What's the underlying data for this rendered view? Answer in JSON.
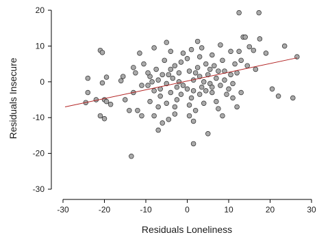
{
  "chart_data": {
    "type": "scatter",
    "xlabel": "Residuals Loneliness",
    "ylabel": "Residuals Insecure",
    "xlim": [
      -30,
      30
    ],
    "ylim": [
      -30,
      20
    ],
    "xticks": [
      -30,
      -20,
      -10,
      0,
      10,
      20,
      30
    ],
    "yticks": [
      -30,
      -20,
      -10,
      0,
      10,
      20
    ],
    "grid": false,
    "regression_line": {
      "x": [
        -29.5,
        26.5
      ],
      "y": [
        -7,
        6.7
      ],
      "color": "#b22222"
    },
    "points": [
      {
        "x": 12.5,
        "y": 19.3
      },
      {
        "x": 17.3,
        "y": 19.3
      },
      {
        "x": -21,
        "y": 8.8
      },
      {
        "x": -20.5,
        "y": 8.2
      },
      {
        "x": -24,
        "y": 1
      },
      {
        "x": -20.5,
        "y": -0.3
      },
      {
        "x": -19.5,
        "y": 1.3
      },
      {
        "x": -24,
        "y": -3
      },
      {
        "x": -22,
        "y": -5
      },
      {
        "x": -20,
        "y": -5
      },
      {
        "x": -19.5,
        "y": -5.5
      },
      {
        "x": -24.5,
        "y": -5.8
      },
      {
        "x": -18.5,
        "y": -6.3
      },
      {
        "x": -21,
        "y": -9.5
      },
      {
        "x": -20,
        "y": -10.3
      },
      {
        "x": -16,
        "y": 0.3
      },
      {
        "x": -15.5,
        "y": 1.5
      },
      {
        "x": -13,
        "y": 4
      },
      {
        "x": -11.5,
        "y": 8
      },
      {
        "x": -12.5,
        "y": 2.5
      },
      {
        "x": -10.5,
        "y": 5
      },
      {
        "x": -13,
        "y": -3
      },
      {
        "x": -14,
        "y": -8
      },
      {
        "x": -12,
        "y": -8
      },
      {
        "x": -11,
        "y": -9.5
      },
      {
        "x": -13.5,
        "y": -20.8
      },
      {
        "x": -8,
        "y": 9.5
      },
      {
        "x": -5,
        "y": 11
      },
      {
        "x": -4,
        "y": 8.5
      },
      {
        "x": -7.5,
        "y": 3.5
      },
      {
        "x": -9,
        "y": 1.5
      },
      {
        "x": -7,
        "y": 0.5
      },
      {
        "x": -9.5,
        "y": -1
      },
      {
        "x": -8,
        "y": -2.5
      },
      {
        "x": -6.5,
        "y": -4
      },
      {
        "x": -9,
        "y": -5.5
      },
      {
        "x": -7,
        "y": -7
      },
      {
        "x": -8,
        "y": -9.5
      },
      {
        "x": -6,
        "y": -11.5
      },
      {
        "x": -7,
        "y": -13.5
      },
      {
        "x": -4.5,
        "y": -10.5
      },
      {
        "x": -3,
        "y": -9
      },
      {
        "x": -5.5,
        "y": 6
      },
      {
        "x": -4,
        "y": 3.5
      },
      {
        "x": -3.5,
        "y": 1
      },
      {
        "x": -5,
        "y": -0.5
      },
      {
        "x": -4,
        "y": -3
      },
      {
        "x": -2.5,
        "y": -5
      },
      {
        "x": -3,
        "y": -7
      },
      {
        "x": -1.5,
        "y": 5.5
      },
      {
        "x": -2,
        "y": 2.5
      },
      {
        "x": -1,
        "y": -1
      },
      {
        "x": -1.5,
        "y": -3.5
      },
      {
        "x": 0,
        "y": 6.5
      },
      {
        "x": 1,
        "y": 9
      },
      {
        "x": 0.5,
        "y": 3
      },
      {
        "x": 1.5,
        "y": 0.5
      },
      {
        "x": 0,
        "y": -2
      },
      {
        "x": 1,
        "y": -4.5
      },
      {
        "x": 0.5,
        "y": -6.5
      },
      {
        "x": 2,
        "y": -8
      },
      {
        "x": 1.5,
        "y": -11
      },
      {
        "x": 2.5,
        "y": 11.3
      },
      {
        "x": 3,
        "y": 7
      },
      {
        "x": 2.5,
        "y": 4
      },
      {
        "x": 3,
        "y": 1.5
      },
      {
        "x": 3.5,
        "y": -1.5
      },
      {
        "x": 3,
        "y": -3.5
      },
      {
        "x": 4,
        "y": -6
      },
      {
        "x": 4.5,
        "y": 5
      },
      {
        "x": 5,
        "y": 2
      },
      {
        "x": 5.5,
        "y": -0.5
      },
      {
        "x": 4.5,
        "y": -2.5
      },
      {
        "x": 6,
        "y": 7.5
      },
      {
        "x": 6.5,
        "y": 4.5
      },
      {
        "x": 7,
        "y": 1
      },
      {
        "x": 6,
        "y": -3
      },
      {
        "x": 7,
        "y": -5.5
      },
      {
        "x": 5,
        "y": -14.5
      },
      {
        "x": 1.5,
        "y": -17.3
      },
      {
        "x": 8,
        "y": 10.3
      },
      {
        "x": 8.5,
        "y": 6
      },
      {
        "x": 9,
        "y": 3
      },
      {
        "x": 8,
        "y": -1
      },
      {
        "x": 9.5,
        "y": -3.5
      },
      {
        "x": 10.5,
        "y": 8.5
      },
      {
        "x": 11.5,
        "y": 5
      },
      {
        "x": 10.5,
        "y": 2
      },
      {
        "x": 11,
        "y": -0.5
      },
      {
        "x": 12.5,
        "y": 8.5
      },
      {
        "x": 13.5,
        "y": 12.5
      },
      {
        "x": 14,
        "y": 12.5
      },
      {
        "x": 15,
        "y": 9.8
      },
      {
        "x": 12,
        "y": 2.5
      },
      {
        "x": 13,
        "y": 6
      },
      {
        "x": 14.5,
        "y": 4.5
      },
      {
        "x": 16,
        "y": 8.8
      },
      {
        "x": 17.5,
        "y": 12
      },
      {
        "x": 16.5,
        "y": 3.5
      },
      {
        "x": 13,
        "y": -3
      },
      {
        "x": 11,
        "y": -4.5
      },
      {
        "x": 12,
        "y": -7
      },
      {
        "x": 19,
        "y": 8
      },
      {
        "x": 20.5,
        "y": -2
      },
      {
        "x": 22,
        "y": -4
      },
      {
        "x": 23.5,
        "y": 10
      },
      {
        "x": 26.5,
        "y": 7
      },
      {
        "x": 25.5,
        "y": -4.5
      },
      {
        "x": -15,
        "y": -5
      },
      {
        "x": -11,
        "y": -1
      },
      {
        "x": -6,
        "y": 2
      },
      {
        "x": -2,
        "y": 0
      },
      {
        "x": 2,
        "y": 2.5
      },
      {
        "x": 4,
        "y": 0
      },
      {
        "x": 6,
        "y": -1.5
      },
      {
        "x": 9,
        "y": 0.5
      },
      {
        "x": 10,
        "y": -2
      },
      {
        "x": -3,
        "y": 4.5
      },
      {
        "x": 0.5,
        "y": -9.5
      },
      {
        "x": -9.5,
        "y": 2.5
      },
      {
        "x": -6.5,
        "y": -2
      },
      {
        "x": -5,
        "y": -6
      },
      {
        "x": -1,
        "y": 8
      },
      {
        "x": 3.5,
        "y": 9.5
      },
      {
        "x": 7.5,
        "y": -7.5
      },
      {
        "x": 8.5,
        "y": -9.5
      },
      {
        "x": -4.5,
        "y": 2
      },
      {
        "x": 5.5,
        "y": 3.5
      },
      {
        "x": 7.5,
        "y": 3
      },
      {
        "x": -8.5,
        "y": 0
      },
      {
        "x": -2.5,
        "y": -1.5
      },
      {
        "x": 1.5,
        "y": -2.5
      }
    ]
  }
}
